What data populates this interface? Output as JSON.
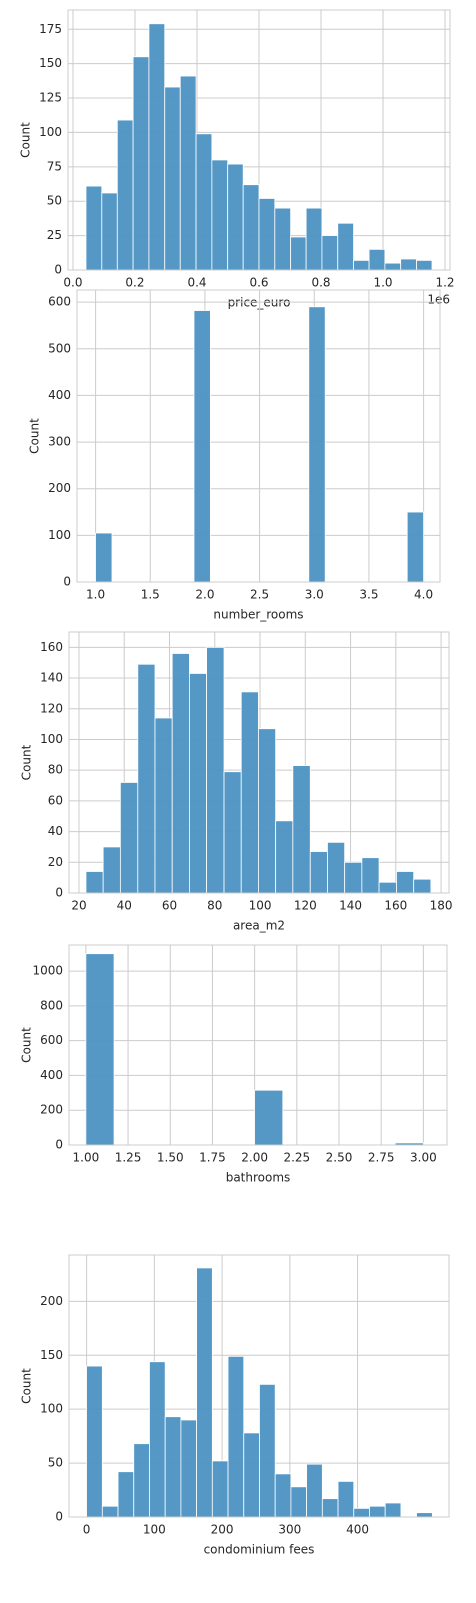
{
  "chart_data": [
    {
      "type": "histogram",
      "xlabel": "price_euro",
      "ylabel": "Count",
      "annotation": "1e6",
      "color": "#4c92c3",
      "grid": true,
      "bins": [
        0.042,
        0.093,
        0.143,
        0.194,
        0.245,
        0.296,
        0.346,
        0.397,
        0.448,
        0.499,
        0.549,
        0.6,
        0.651,
        0.702,
        0.752,
        0.803,
        0.854,
        0.905,
        0.955,
        1.006,
        1.057,
        1.108,
        1.158
      ],
      "counts": [
        61,
        56,
        109,
        155,
        179,
        133,
        141,
        99,
        80,
        77,
        62,
        52,
        45,
        24,
        45,
        25,
        34,
        7,
        15,
        5,
        8,
        7
      ],
      "xlim": [
        -0.016,
        1.216
      ],
      "xticks": [
        {
          "value": 0,
          "label": "0.0"
        },
        0.2,
        0.4,
        0.6,
        0.8,
        {
          "value": 1,
          "label": "1.0"
        },
        1.2
      ],
      "ylim": [
        0,
        189
      ],
      "yticks": [
        0,
        25,
        50,
        75,
        100,
        125,
        150,
        175
      ]
    },
    {
      "type": "histogram",
      "xlabel": "number_rooms",
      "ylabel": "Count",
      "color": "#4c92c3",
      "grid": true,
      "bins": [
        1,
        1.15,
        1.3,
        1.45,
        1.6,
        1.75,
        1.9,
        2.05,
        2.2,
        2.35,
        2.5,
        2.65,
        2.8,
        2.95,
        3.1,
        3.25,
        3.4,
        3.55,
        3.7,
        3.85,
        4
      ],
      "counts": [
        105,
        0,
        0,
        0,
        0,
        0,
        582,
        0,
        0,
        0,
        0,
        0,
        0,
        590,
        0,
        0,
        0,
        0,
        0,
        150
      ],
      "xlim": [
        0.83,
        4.15
      ],
      "xticks": [
        {
          "value": 1,
          "label": "1.0"
        },
        1.5,
        {
          "value": 2,
          "label": "2.0"
        },
        2.5,
        {
          "value": 3,
          "label": "3.0"
        },
        3.5,
        {
          "value": 4,
          "label": "4.0"
        }
      ],
      "ylim": [
        0,
        626
      ],
      "yticks": [
        0,
        100,
        200,
        300,
        400,
        500,
        600
      ]
    },
    {
      "type": "histogram",
      "xlabel": "area_m2",
      "ylabel": "Count",
      "color": "#4c92c3",
      "grid": true,
      "bins": [
        23.1,
        30.7,
        38.3,
        46.0,
        53.6,
        61.2,
        68.8,
        76.4,
        84.1,
        91.7,
        99.3,
        106.9,
        114.5,
        122.2,
        129.8,
        137.4,
        145.0,
        152.6,
        160.3,
        167.9,
        175.5
      ],
      "counts": [
        14,
        30,
        72,
        149,
        114,
        156,
        143,
        160,
        79,
        131,
        107,
        47,
        83,
        27,
        33,
        20,
        23,
        7,
        14,
        9
      ],
      "xlim": [
        15.6,
        183.5
      ],
      "xticks": [
        20,
        40,
        60,
        80,
        100,
        120,
        140,
        160,
        180
      ],
      "ylim": [
        0,
        170
      ],
      "yticks": [
        0,
        20,
        40,
        60,
        80,
        100,
        120,
        140,
        160
      ]
    },
    {
      "type": "histogram",
      "xlabel": "bathrooms",
      "ylabel": "Count",
      "color": "#4c92c3",
      "grid": true,
      "bins": [
        1,
        1.167,
        1.333,
        1.5,
        1.667,
        1.833,
        2,
        2.167,
        2.333,
        2.5,
        2.667,
        2.833,
        3
      ],
      "counts": [
        1100,
        0,
        0,
        0,
        0,
        0,
        315,
        0,
        0,
        0,
        0,
        12
      ],
      "xlim": [
        0.9,
        3.14
      ],
      "xticks": [
        {
          "value": 1,
          "label": "1.00"
        },
        1.25,
        {
          "value": 1.5,
          "label": "1.50"
        },
        1.75,
        {
          "value": 2,
          "label": "2.00"
        },
        2.25,
        {
          "value": 2.5,
          "label": "2.50"
        },
        2.75,
        {
          "value": 3,
          "label": "3.00"
        }
      ],
      "ylim": [
        0,
        1150
      ],
      "yticks": [
        0,
        200,
        400,
        600,
        800,
        1000
      ]
    },
    {
      "type": "histogram",
      "xlabel": "condominium fees",
      "ylabel": "Count",
      "color": "#4c92c3",
      "grid": true,
      "bins": [
        0,
        23.2,
        46.4,
        69.6,
        92.8,
        116,
        139.2,
        162.4,
        185.6,
        208.8,
        232,
        255.2,
        278.4,
        301.6,
        324.8,
        348,
        371.2,
        394.4,
        417.6,
        440.8,
        464,
        487.2,
        510.4
      ],
      "counts": [
        140,
        10,
        42,
        68,
        144,
        93,
        90,
        231,
        52,
        149,
        78,
        123,
        40,
        28,
        49,
        17,
        33,
        8,
        10,
        13,
        0,
        4
      ],
      "xlim": [
        -26,
        535
      ],
      "xticks": [
        0,
        100,
        200,
        300,
        400
      ],
      "ylim": [
        0,
        243
      ],
      "yticks": [
        0,
        50,
        100,
        150,
        200
      ]
    }
  ]
}
